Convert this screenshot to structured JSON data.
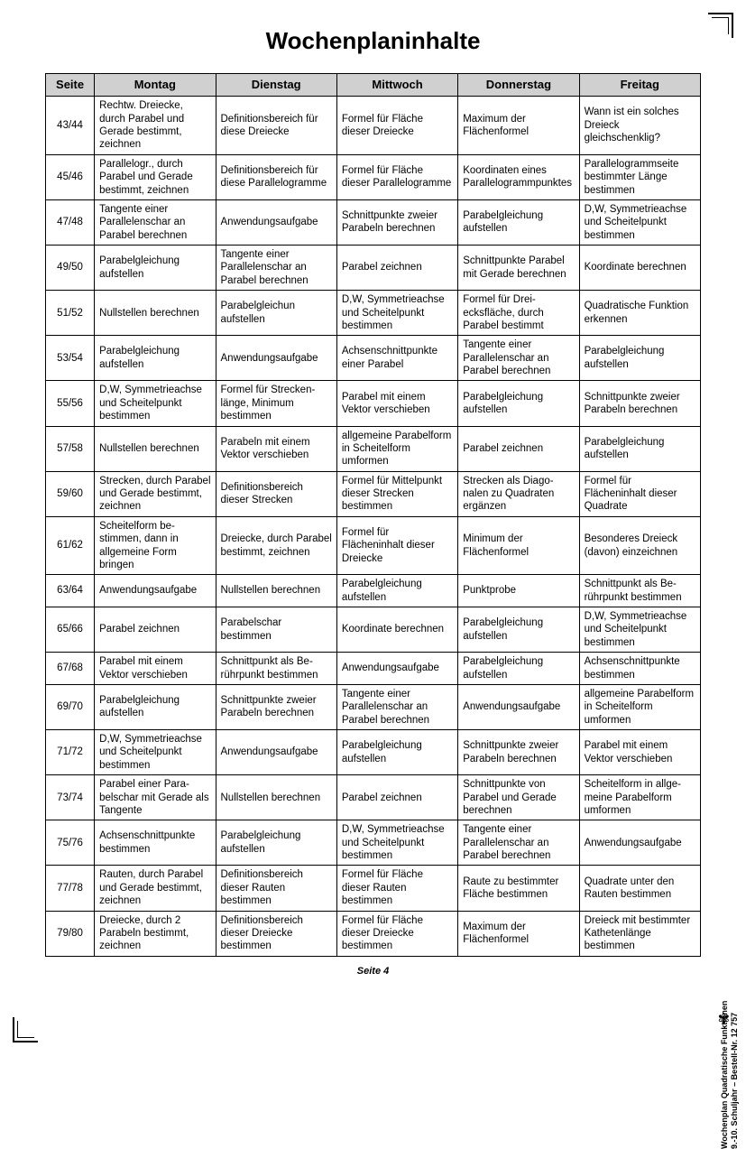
{
  "title": "Wochenplaninhalte",
  "page_label": "Seite 4",
  "side_line1": "Wochenplan Quadratische Funktionen",
  "side_line2": "9.-10. Schuljahr   –   Bestell-Nr. 12 757",
  "columns": [
    "Seite",
    "Montag",
    "Dienstag",
    "Mittwoch",
    "Donnerstag",
    "Freitag"
  ],
  "rows": [
    {
      "seite": "43/44",
      "mo": "Rechtw. Dreiecke, durch Parabel und Gerade bestimmt, zeichnen",
      "di": "Definitionsbereich für diese Dreiecke",
      "mi": "Formel für Fläche dieser Dreiecke",
      "do": "Maximum der Flächenformel",
      "fr": "Wann ist ein solches Dreieck gleichschenklig?"
    },
    {
      "seite": "45/46",
      "mo": "Parallelogr., durch Parabel und Gerade bestimmt, zeichnen",
      "di": "Definitionsbereich für diese Parallelo­gramme",
      "mi": "Formel für Fläche dieser Parallelo­gramme",
      "do": "Koordinaten eines Parallelogramm­punktes",
      "fr": "Parallelogrammseite bestimmter Länge bestimmen"
    },
    {
      "seite": "47/48",
      "mo": "Tangente einer Parallelenschar an Parabel berechnen",
      "di": "Anwendungsaufgabe",
      "mi": "Schnittpunkte zweier Parabeln berechnen",
      "do": "Parabelgleichung aufstellen",
      "fr": "D,W, Symmetrieach­se und Scheitelpunkt bestimmen"
    },
    {
      "seite": "49/50",
      "mo": "Parabelgleichung aufstellen",
      "di": "Tangente einer Parallelenschar an Parabel berechnen",
      "mi": "Parabel zeichnen",
      "do": "Schnittpunkte Parabel mit Gerade berechnen",
      "fr": "Koordinate berechnen"
    },
    {
      "seite": "51/52",
      "mo": "Nullstellen berechnen",
      "di": "Parabelgleichun aufstellen",
      "mi": "D,W, Symmetrieach­se und Scheitelpunkt bestimmen",
      "do": "Formel für Drei­ecksfläche, durch Parabel bestimmt",
      "fr": "Quadratische Funktion erkennen"
    },
    {
      "seite": "53/54",
      "mo": "Parabelgleichung aufstellen",
      "di": "Anwendungsaufgabe",
      "mi": "Achsenschnittpunkte einer Parabel",
      "do": "Tangente einer Parallelenschar an Parabel berechnen",
      "fr": "Parabelgleichung aufstellen"
    },
    {
      "seite": "55/56",
      "mo": "D,W, Symmetrieach­se und Scheitelpunkt bestimmen",
      "di": "Formel für Strecken­länge, Minimum bestimmen",
      "mi": "Parabel mit einem Vektor verschieben",
      "do": "Parabelgleichung aufstellen",
      "fr": "Schnittpunkte zweier Parabeln berechnen"
    },
    {
      "seite": "57/58",
      "mo": "Nullstellen berechnen",
      "di": "Parabeln mit einem Vektor verschieben",
      "mi": "allgemeine Parabel­form in Scheitelform umformen",
      "do": "Parabel zeichnen",
      "fr": "Parabelgleichung aufstellen"
    },
    {
      "seite": "59/60",
      "mo": "Strecken, durch Parabel und Gerade bestimmt, zeichnen",
      "di": "Definitionsbereich dieser Strecken",
      "mi": "Formel für Mittel­punkt dieser Stre­cken bestimmen",
      "do": "Strecken als Diago­nalen zu Quadraten ergänzen",
      "fr": "Formel für Flächeninhalt dieser Quadrate"
    },
    {
      "seite": "61/62",
      "mo": "Scheitelform be­stimmen, dann in allgemeine Form bringen",
      "di": "Dreiecke, durch Parabel bestimmt, zeichnen",
      "mi": "Formel für Flächeninhalt dieser Dreiecke",
      "do": "Minimum der Flächenformel",
      "fr": "Besonderes Dreieck (davon) einzeichnen"
    },
    {
      "seite": "63/64",
      "mo": "Anwendungsaufgabe",
      "di": "Nullstellen berechnen",
      "mi": "Parabelgleichung aufstellen",
      "do": "Punktprobe",
      "fr": "Schnittpunkt als Be­rührpunkt bestimmen"
    },
    {
      "seite": "65/66",
      "mo": "Parabel zeichnen",
      "di": "Parabelschar bestimmen",
      "mi": "Koordinate berechnen",
      "do": "Parabelgleichung aufstellen",
      "fr": "D,W, Symmetrieach­se und Scheitelpunkt bestimmen"
    },
    {
      "seite": "67/68",
      "mo": "Parabel mit einem Vektor verschieben",
      "di": "Schnittpunkt als Be­rührpunkt bestimmen",
      "mi": "Anwendungsaufgabe",
      "do": "Parabelgleichung aufstellen",
      "fr": "Achsenschnittpunkte bestimmen"
    },
    {
      "seite": "69/70",
      "mo": "Parabelgleichung aufstellen",
      "di": "Schnittpunkte zweier Parabeln berechnen",
      "mi": "Tangente einer Parallelenschar an Parabel berechnen",
      "do": "Anwendungsaufgabe",
      "fr": "allgemeine Parabel­form in Scheitelform umformen"
    },
    {
      "seite": "71/72",
      "mo": "D,W, Symmetrieach­se und Scheitelpunkt bestimmen",
      "di": "Anwendungsaufgabe",
      "mi": "Parabelgleichung aufstellen",
      "do": "Schnittpunkte zweier Parabeln berechnen",
      "fr": "Parabel mit einem Vektor verschieben"
    },
    {
      "seite": "73/74",
      "mo": "Parabel einer Para­belschar mit Gerade als Tangente",
      "di": "Nullstellen berechnen",
      "mi": "Parabel zeichnen",
      "do": "Schnittpunkte von Parabel und Gerade berechnen",
      "fr": "Scheitelform in allge­meine Parabelform umformen"
    },
    {
      "seite": "75/76",
      "mo": "Achsenschnittpunkte bestimmen",
      "di": "Parabelgleichung aufstellen",
      "mi": "D,W, Symmetrieach­se und Scheitelpunkt bestimmen",
      "do": "Tangente einer Parallelenschar an Parabel berechnen",
      "fr": "Anwendungsaufgabe"
    },
    {
      "seite": "77/78",
      "mo": "Rauten, durch Parabel und Gerade bestimmt, zeichnen",
      "di": "Definitionsbereich dieser Rauten bestimmen",
      "mi": "Formel für Fläche dieser Rauten bestimmen",
      "do": "Raute zu bestimmter Fläche bestimmen",
      "fr": "Quadrate unter den Rauten bestimmen"
    },
    {
      "seite": "79/80",
      "mo": "Dreiecke, durch 2 Parabeln bestimmt, zeichnen",
      "di": "Definitionsbereich dieser Dreiecke bestimmen",
      "mi": "Formel für Fläche dieser Dreiecke bestimmen",
      "do": "Maximum der Flächenformel",
      "fr": "Dreieck mit bestimm­ter Kathetenlänge bestimmen"
    }
  ]
}
